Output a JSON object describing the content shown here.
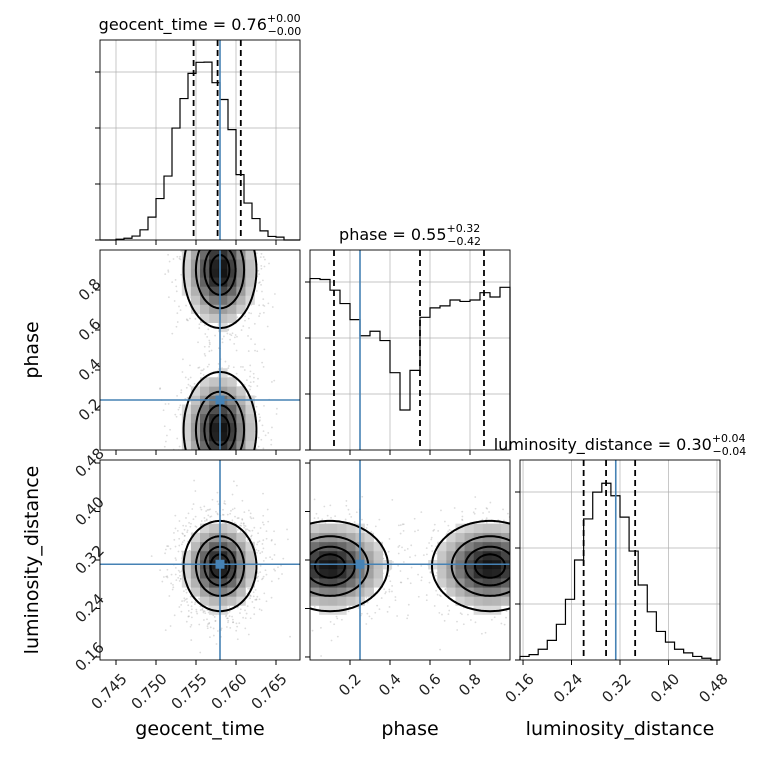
{
  "chart_data": {
    "type": "corner",
    "parameters": [
      "geocent_time",
      "phase",
      "luminosity_distance"
    ],
    "truth_color": "#4682b4",
    "truths": {
      "geocent_time": 0.758,
      "phase": 0.25,
      "luminosity_distance": 0.313
    },
    "axes": {
      "geocent_time": {
        "range": [
          0.743,
          0.768
        ],
        "ticks": [
          0.745,
          0.75,
          0.755,
          0.76,
          0.765
        ],
        "tick_labels": [
          "0.745",
          "0.750",
          "0.755",
          "0.760",
          "0.765"
        ]
      },
      "phase": {
        "range": [
          0.0,
          1.0
        ],
        "ticks": [
          0.2,
          0.4,
          0.6,
          0.8
        ],
        "tick_labels": [
          "0.2",
          "0.4",
          "0.6",
          "0.8"
        ]
      },
      "luminosity_distance": {
        "range": [
          0.155,
          0.485
        ],
        "ticks": [
          0.16,
          0.24,
          0.32,
          0.4,
          0.48
        ],
        "tick_labels": [
          "0.16",
          "0.24",
          "0.32",
          "0.40",
          "0.48"
        ]
      }
    },
    "diagonal": [
      {
        "parameter": "geocent_time",
        "title": {
          "base": "geocent_time = 0.76",
          "sup": "+0.00",
          "sub": "−0.00"
        },
        "quantiles": [
          0.7547,
          0.7577,
          0.7606
        ],
        "hist_ymax": 1.0,
        "hist_yticks": [
          0.0,
          0.3333,
          0.6667,
          1.0
        ],
        "bins": [
          0.743,
          0.744,
          0.745,
          0.746,
          0.747,
          0.748,
          0.749,
          0.75,
          0.751,
          0.752,
          0.753,
          0.754,
          0.755,
          0.756,
          0.757,
          0.758,
          0.759,
          0.76,
          0.761,
          0.762,
          0.763,
          0.764,
          0.765,
          0.766,
          0.767,
          0.768
        ],
        "counts": [
          0.0,
          0.0,
          0.004,
          0.01,
          0.022,
          0.057,
          0.128,
          0.232,
          0.358,
          0.627,
          0.792,
          0.933,
          0.995,
          0.996,
          0.881,
          0.787,
          0.618,
          0.366,
          0.207,
          0.12,
          0.051,
          0.02,
          0.016,
          0.0,
          0.0
        ]
      },
      {
        "parameter": "phase",
        "title": {
          "base": "phase = 0.55",
          "sup": "+0.32",
          "sub": "−0.42"
        },
        "quantiles": [
          0.12,
          0.55,
          0.87
        ],
        "hist_ymax": 1.0,
        "hist_yticks": [
          0.0,
          0.3333,
          0.6667,
          1.0
        ],
        "bins": [
          0.0,
          0.05,
          0.1,
          0.15,
          0.2,
          0.25,
          0.3,
          0.35,
          0.4,
          0.45,
          0.5,
          0.55,
          0.6,
          0.65,
          0.7,
          0.75,
          0.8,
          0.85,
          0.9,
          0.95,
          1.0
        ],
        "counts": [
          0.96,
          0.955,
          0.895,
          0.82,
          0.73,
          0.64,
          0.665,
          0.613,
          0.433,
          0.224,
          0.446,
          0.743,
          0.796,
          0.807,
          0.84,
          0.832,
          0.84,
          0.881,
          0.857,
          0.911
        ]
      },
      {
        "parameter": "luminosity_distance",
        "title": {
          "base": "luminosity_distance = 0.30",
          "sup": "+0.04",
          "sub": "−0.04"
        },
        "quantiles": [
          0.26,
          0.297,
          0.345
        ],
        "hist_ymax": 1.0,
        "hist_yticks": [
          0.0,
          0.3333,
          0.6667,
          1.0
        ],
        "bins": [
          0.155,
          0.17,
          0.185,
          0.2,
          0.215,
          0.23,
          0.245,
          0.26,
          0.275,
          0.29,
          0.305,
          0.32,
          0.335,
          0.35,
          0.365,
          0.38,
          0.395,
          0.41,
          0.425,
          0.44,
          0.455,
          0.47,
          0.485
        ],
        "counts": [
          0.02,
          0.03,
          0.06,
          0.11,
          0.2,
          0.34,
          0.56,
          0.79,
          0.94,
          0.99,
          0.92,
          0.8,
          0.61,
          0.42,
          0.27,
          0.16,
          0.1,
          0.06,
          0.04,
          0.02,
          0.01,
          0.0
        ]
      }
    ],
    "two_d": [
      {
        "x": "geocent_time",
        "y": "phase",
        "modes": [
          {
            "cx": 0.758,
            "cy": 0.1,
            "sx": 0.0022,
            "sy": 0.14
          },
          {
            "cx": 0.758,
            "cy": 0.9,
            "sx": 0.0022,
            "sy": 0.14
          }
        ]
      },
      {
        "x": "geocent_time",
        "y": "luminosity_distance",
        "modes": [
          {
            "cx": 0.758,
            "cy": 0.31,
            "sx": 0.0022,
            "sy": 0.036
          }
        ]
      },
      {
        "x": "phase",
        "y": "luminosity_distance",
        "modes": [
          {
            "cx": 0.1,
            "cy": 0.31,
            "sx": 0.14,
            "sy": 0.036
          },
          {
            "cx": 0.9,
            "cy": 0.31,
            "sx": 0.14,
            "sy": 0.036
          }
        ]
      }
    ],
    "contour_levels": [
      0.118,
      0.393,
      0.675,
      0.865
    ],
    "grid": true
  }
}
